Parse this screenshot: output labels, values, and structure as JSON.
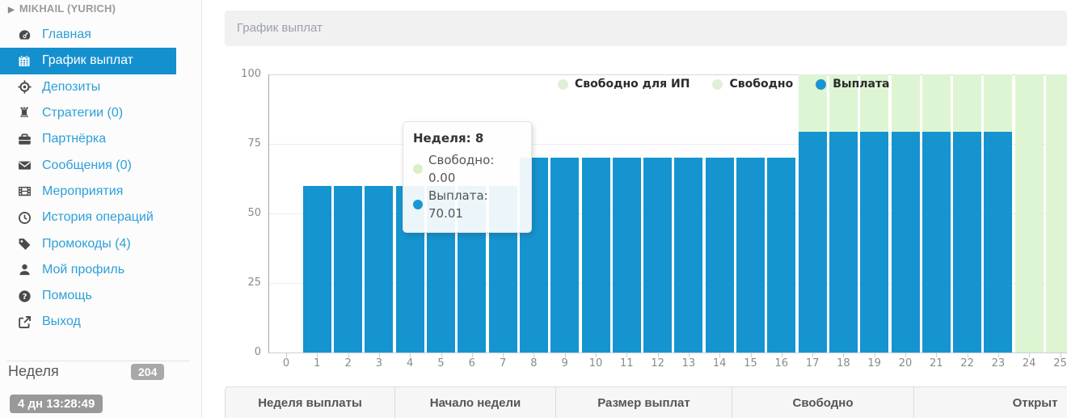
{
  "sidebar": {
    "user": "MIKHAIL (YURICH)",
    "items": [
      {
        "label": "Главная",
        "icon": "dashboard-icon"
      },
      {
        "label": "График выплат",
        "icon": "calendar-icon",
        "active": true
      },
      {
        "label": "Депозиты",
        "icon": "crosshair-icon"
      },
      {
        "label": "Стратегии (0)",
        "icon": "chess-rook-icon"
      },
      {
        "label": "Партнёрка",
        "icon": "briefcase-icon"
      },
      {
        "label": "Сообщения (0)",
        "icon": "envelope-icon"
      },
      {
        "label": "Мероприятия",
        "icon": "film-icon"
      },
      {
        "label": "История операций",
        "icon": "clock-icon"
      },
      {
        "label": "Промокоды (4)",
        "icon": "tag-icon"
      },
      {
        "label": "Мой профиль",
        "icon": "user-icon"
      },
      {
        "label": "Помощь",
        "icon": "question-icon"
      },
      {
        "label": "Выход",
        "icon": "sign-out-icon"
      }
    ],
    "week_label": "Неделя",
    "week_badge": "204",
    "timer_badge": "4 дн 13:28:49"
  },
  "main": {
    "title": "График выплат"
  },
  "chart_data": {
    "type": "bar",
    "stacked": true,
    "title": "",
    "xlabel": "",
    "ylabel": "",
    "ylim": [
      0,
      100
    ],
    "yticks": [
      0,
      25,
      50,
      75,
      100
    ],
    "xticks": [
      0,
      1,
      2,
      3,
      4,
      5,
      6,
      7,
      8,
      9,
      10,
      11,
      12,
      13,
      14,
      15,
      16,
      17,
      18,
      19,
      20,
      21,
      22,
      23,
      24,
      25
    ],
    "weeks": [
      1,
      2,
      3,
      4,
      5,
      6,
      7,
      8,
      9,
      10,
      11,
      12,
      13,
      14,
      15,
      16,
      17,
      18,
      19,
      20,
      21,
      22,
      23,
      24,
      25
    ],
    "series": [
      {
        "name": "Выплата",
        "color": "#1594cf",
        "values": [
          60.01,
          60.01,
          60.01,
          60.01,
          60.01,
          60.01,
          60.01,
          70.01,
          70.01,
          70.01,
          70.01,
          70.01,
          70.01,
          70.01,
          70.01,
          70.01,
          79.5,
          79.5,
          79.5,
          79.5,
          79.5,
          79.5,
          79.5,
          0,
          0
        ]
      },
      {
        "name": "Свободно",
        "color": "#def5d3",
        "values": [
          0,
          0,
          0,
          0,
          0,
          0,
          0,
          0,
          0,
          0,
          0,
          0,
          0,
          0,
          0,
          0,
          20.5,
          20.5,
          20.5,
          20.5,
          20.5,
          20.5,
          20.5,
          100,
          100
        ]
      }
    ],
    "legend": [
      {
        "label": "Свободно для ИП",
        "swatch": "green"
      },
      {
        "label": "Свободно",
        "swatch": "green"
      },
      {
        "label": "Выплата",
        "swatch": "blue"
      }
    ],
    "legend_position": "top",
    "grid": true,
    "tooltip": {
      "title": "Неделя: 8",
      "rows": [
        {
          "text": "Свободно: 0.00",
          "swatch": "green"
        },
        {
          "text": "Выплата: 70.01",
          "swatch": "blue"
        }
      ]
    }
  },
  "table": {
    "columns": [
      "Неделя выплаты",
      "Начало недели",
      "Размер выплат",
      "Свободно",
      "Открыт"
    ]
  },
  "colors": {
    "bar_blue": "#1594cf",
    "free_green": "#def5d3",
    "legend_green_dot": "#dff0d8",
    "active_item_bg": "#1590cf",
    "link_blue": "#2d9fd9",
    "badge_gray": "#a8a8a8",
    "timer_gray": "#999999"
  }
}
